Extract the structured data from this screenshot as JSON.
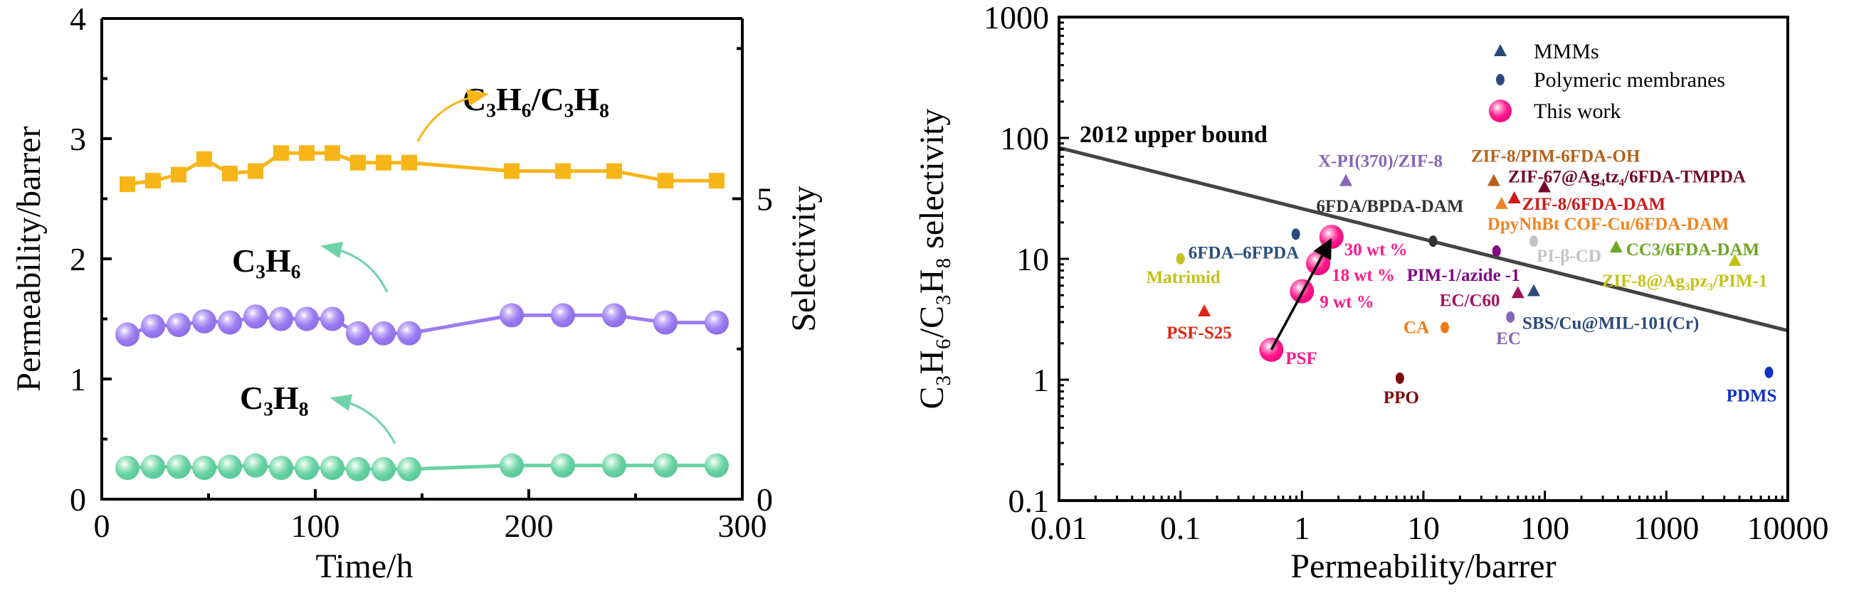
{
  "chart_data": [
    {
      "type": "line",
      "xlabel": "Time/h",
      "ylabel": "Permeability/barrer",
      "y2label": "Selectivity",
      "xlim": [
        0,
        300
      ],
      "ylim": [
        0,
        4
      ],
      "y2lim": [
        0,
        8
      ],
      "xticks": [
        "0",
        "100",
        "200",
        "300"
      ],
      "yticks": [
        "0",
        "1",
        "2",
        "3",
        "4"
      ],
      "y2ticks": [
        "0",
        "5"
      ],
      "x": [
        12,
        24,
        36,
        48,
        60,
        72,
        84,
        96,
        108,
        120,
        132,
        144,
        192,
        216,
        240,
        264,
        288
      ],
      "series": [
        {
          "name": "C₃H₆/C₃H₈",
          "axis": "right",
          "color": "#f7b517",
          "marker": "square",
          "values": [
            5.24,
            5.3,
            5.4,
            5.66,
            5.42,
            5.46,
            5.76,
            5.76,
            5.76,
            5.6,
            5.6,
            5.6,
            5.46,
            5.46,
            5.46,
            5.3,
            5.3
          ]
        },
        {
          "name": "C₃H₆",
          "axis": "left",
          "color": "#9b7cf0",
          "marker": "sphere",
          "values": [
            1.37,
            1.44,
            1.45,
            1.48,
            1.47,
            1.52,
            1.5,
            1.5,
            1.5,
            1.38,
            1.38,
            1.38,
            1.53,
            1.53,
            1.53,
            1.47,
            1.47
          ]
        },
        {
          "name": "C₃H₈",
          "axis": "left",
          "color": "#68d3a2",
          "marker": "sphere",
          "values": [
            0.26,
            0.27,
            0.27,
            0.26,
            0.27,
            0.28,
            0.26,
            0.26,
            0.26,
            0.25,
            0.25,
            0.25,
            0.28,
            0.28,
            0.28,
            0.28,
            0.28
          ]
        }
      ],
      "annotations": [
        "C₃H₆/C₃H₈",
        "C₃H₆",
        "C₃H₈"
      ]
    },
    {
      "type": "scatter",
      "xlabel": "Permeability/barrer",
      "ylabel": "C₃H₆/C₃H₈ selectivity",
      "xscale": "log",
      "yscale": "log",
      "xlim": [
        0.01,
        10000
      ],
      "ylim": [
        0.1,
        1000
      ],
      "xticks": [
        "0.01",
        "0.1",
        "1",
        "10",
        "100",
        "1000",
        "10000"
      ],
      "yticks": [
        "0.1",
        "1",
        "10",
        "100",
        "1000"
      ],
      "legend": {
        "placement": "top-right",
        "items": [
          {
            "label": "MMMs",
            "marker": "triangle",
            "color": "#2a4a7c"
          },
          {
            "label": "Polymeric membranes",
            "marker": "circle",
            "color": "#2a4a7c"
          },
          {
            "label": "This work",
            "marker": "sphere",
            "color": "#ff1a8c"
          }
        ]
      },
      "upper_bound": {
        "label": "2012 upper bound",
        "points": [
          [
            0.01,
            83
          ],
          [
            10000,
            2.55
          ]
        ],
        "color": "#444444"
      },
      "arrow": {
        "from": [
          0.56,
          1.77
        ],
        "to": [
          1.75,
          15.2
        ]
      },
      "points": [
        {
          "label": "X-PI(370)/ZIF-8",
          "x": 2.3,
          "y": 44,
          "type": "MMM",
          "color": "#8566b8"
        },
        {
          "label": "ZIF-8/PIM-6FDA-OH",
          "x": 38,
          "y": 44,
          "type": "MMM",
          "color": "#b5621c"
        },
        {
          "label": "ZIF-67@Ag₄tz₄/6FDA-TMPDA",
          "x": 99,
          "y": 39,
          "type": "MMM",
          "color": "#72082e"
        },
        {
          "label": "ZIF-8/6FDA-DAM",
          "x": 56,
          "y": 31.6,
          "type": "MMM",
          "color": "#d01818"
        },
        {
          "label": "DpyNhBt COF-Cu/6FDA-DAM",
          "x": 44,
          "y": 28.4,
          "type": "MMM",
          "color": "#f08424"
        },
        {
          "label": "6FDA/BPDA-DAM",
          "x": 12,
          "y": 14,
          "type": "Polymer",
          "color": "#333333"
        },
        {
          "label": "PI-β-CD",
          "x": 81,
          "y": 14,
          "type": "Polymer",
          "color": "#c4c4c4"
        },
        {
          "label": "CC3/6FDA-DAM",
          "x": 386,
          "y": 12.4,
          "type": "MMM",
          "color": "#6ea524"
        },
        {
          "label": "ZIF-8@Ag₃pz₃/PIM-1",
          "x": 3670,
          "y": 9.6,
          "type": "MMM",
          "color": "#c3c316"
        },
        {
          "label": "PIM-1/azide -1",
          "x": 40,
          "y": 11.6,
          "type": "Polymer",
          "color": "#7e0a82"
        },
        {
          "label": "6FDA–6FPDA",
          "x": 0.89,
          "y": 16,
          "type": "Polymer",
          "color": "#2c4d7d"
        },
        {
          "label": "30 wt %",
          "x": 1.75,
          "y": 15.2,
          "type": "This work",
          "color": "#ff1a8c"
        },
        {
          "label": "18 wt %",
          "x": 1.36,
          "y": 9.2,
          "type": "This work",
          "color": "#ff1a8c"
        },
        {
          "label": "9 wt %",
          "x": 1.0,
          "y": 5.4,
          "type": "This work",
          "color": "#ff1a8c"
        },
        {
          "label": "EC/C60",
          "x": 60,
          "y": 5.2,
          "type": "MMM",
          "color": "#a3105c"
        },
        {
          "label": "SBS/Cu@MIL-101(Cr)",
          "x": 81,
          "y": 5.4,
          "type": "MMM",
          "color": "#2c4a7a"
        },
        {
          "label": "EC",
          "x": 52,
          "y": 3.3,
          "type": "Polymer",
          "color": "#8566b8"
        },
        {
          "label": "CA",
          "x": 15,
          "y": 2.7,
          "type": "Polymer",
          "color": "#f27a12"
        },
        {
          "label": "PSF",
          "x": 0.56,
          "y": 1.77,
          "type": "This work",
          "color": "#ff1a8c"
        },
        {
          "label": "PSF-S25",
          "x": 0.157,
          "y": 3.67,
          "type": "MMM",
          "color": "#e02412"
        },
        {
          "label": "Matrimid",
          "x": 0.1,
          "y": 10,
          "type": "Polymer",
          "color": "#c2c21e"
        },
        {
          "label": "PPO",
          "x": 6.4,
          "y": 1.03,
          "type": "Polymer",
          "color": "#7e0a0a"
        },
        {
          "label": "PDMS",
          "x": 7000,
          "y": 1.15,
          "type": "Polymer",
          "color": "#1230c2"
        }
      ]
    }
  ]
}
